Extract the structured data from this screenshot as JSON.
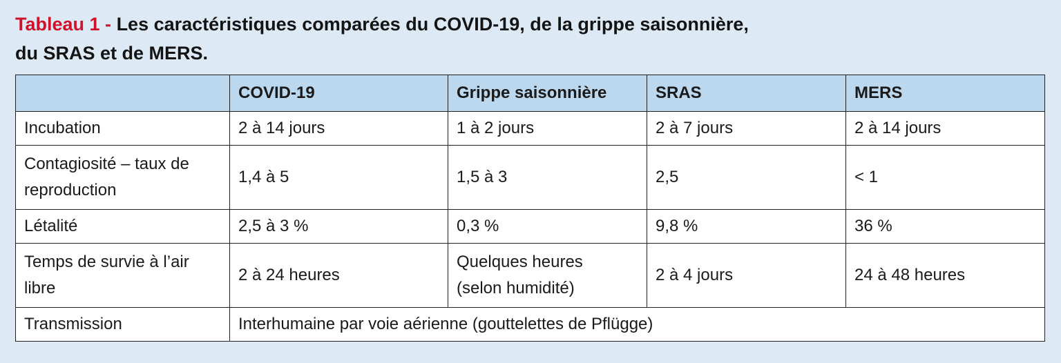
{
  "title": {
    "label": "Tableau 1 -",
    "text_line1": "Les caractéristiques comparées du COVID-19, de la grippe saisonnière,",
    "text_line2": "du SRAS et de MERS."
  },
  "table": {
    "headers": [
      "",
      "COVID-19",
      "Grippe saisonnière",
      "SRAS",
      "MERS"
    ],
    "rows": [
      {
        "label": [
          "Incubation"
        ],
        "cells": [
          [
            "2 à 14 jours"
          ],
          [
            "1 à 2 jours"
          ],
          [
            "2 à 7 jours"
          ],
          [
            "2 à 14 jours"
          ]
        ]
      },
      {
        "label": [
          "Contagiosité – taux de",
          "reproduction"
        ],
        "cells": [
          [
            "1,4 à 5"
          ],
          [
            "1,5 à 3"
          ],
          [
            "2,5"
          ],
          [
            "< 1"
          ]
        ]
      },
      {
        "label": [
          "Létalité"
        ],
        "cells": [
          [
            "2,5 à 3 %"
          ],
          [
            "0,3 %"
          ],
          [
            "9,8 %"
          ],
          [
            "36 %"
          ]
        ]
      },
      {
        "label": [
          "Temps de survie à l’air",
          "libre"
        ],
        "cells": [
          [
            "2 à 24 heures"
          ],
          [
            "Quelques heures",
            "(selon humidité)"
          ],
          [
            "2 à 4 jours"
          ],
          [
            "24 à 48 heures"
          ]
        ]
      }
    ],
    "transmission": {
      "label": "Transmission",
      "value": "Interhumaine par voie aérienne (gouttelettes de Pflügge)"
    }
  },
  "colors": {
    "page_background": "#ddeaf5",
    "header_background": "#bcd8ef",
    "title_label": "#d0112b"
  }
}
